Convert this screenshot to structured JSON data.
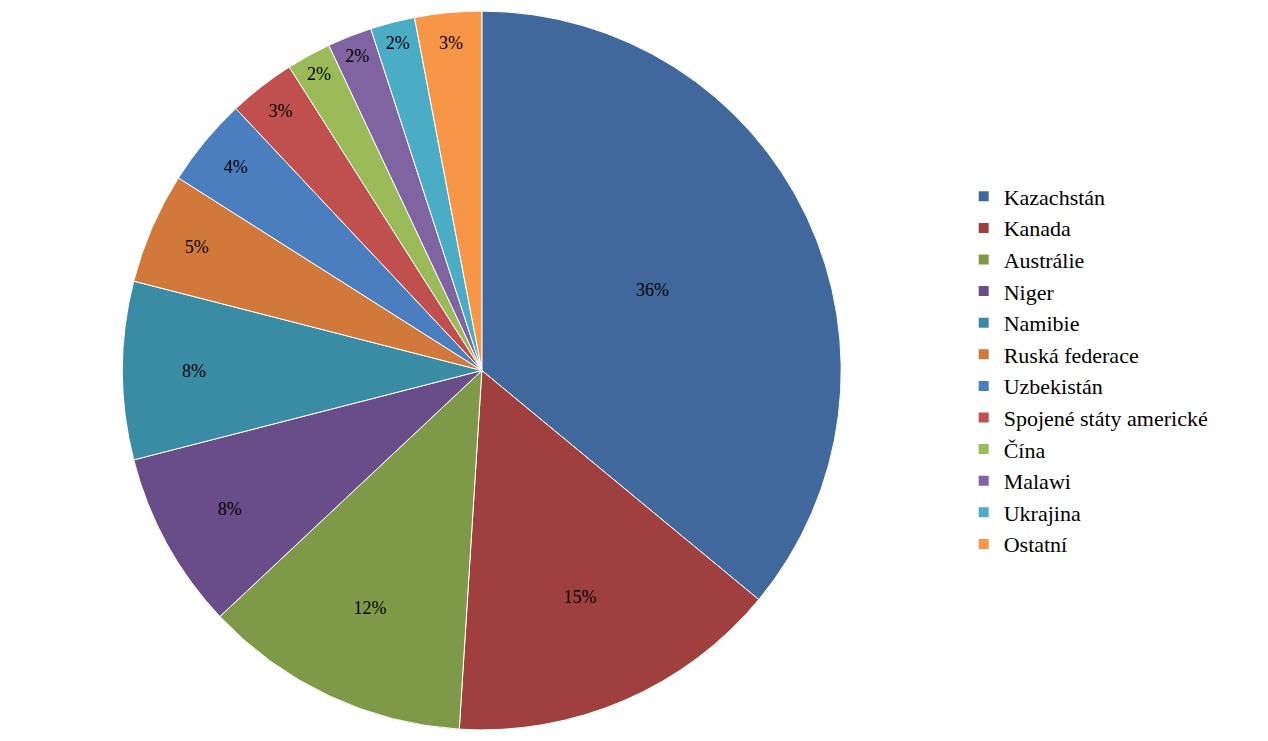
{
  "chart_data": {
    "type": "pie",
    "categories": [
      "Kazachstán",
      "Kanada",
      "Austrálie",
      "Niger",
      "Namibie",
      "Ruská federace",
      "Uzbekistán",
      "Spojené státy americké",
      "Čína",
      "Malawi",
      "Ukrajina",
      "Ostatní"
    ],
    "values": [
      36,
      15,
      12,
      8,
      8,
      5,
      4,
      3,
      2,
      2,
      2,
      3
    ],
    "value_labels": [
      "36%",
      "15%",
      "12%",
      "8%",
      "8%",
      "5%",
      "4%",
      "3%",
      "2%",
      "2%",
      "2%",
      "3%"
    ],
    "colors": [
      "#41689c",
      "#a0403e",
      "#7e9a48",
      "#684d88",
      "#3a8ca4",
      "#d1793a",
      "#4a7ebf",
      "#c0504d",
      "#9bbb59",
      "#8064a2",
      "#4bacc6",
      "#f79646"
    ],
    "data_labels": true,
    "legend": "right"
  }
}
